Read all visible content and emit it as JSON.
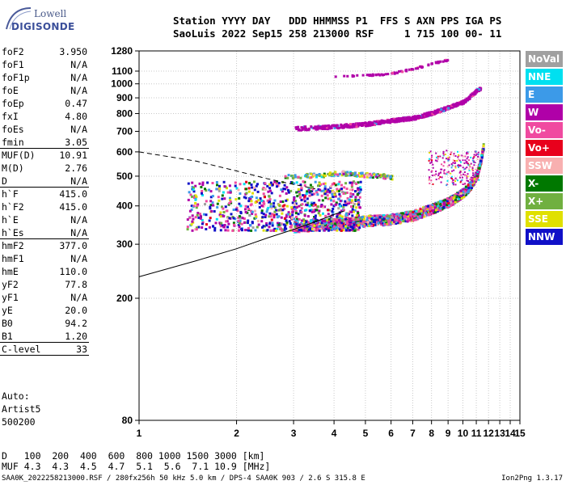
{
  "logo": {
    "line1": "Lowell",
    "line2": "DIGISONDE"
  },
  "header": {
    "line1": "Station YYYY DAY   DDD HHMMSS P1  FFS S AXN PPS IGA PS",
    "line2": "SaoLuis 2022 Sep15 258 213000 RSF     1 715 100 00- 11"
  },
  "params": [
    {
      "label": "foF2",
      "value": "3.950"
    },
    {
      "label": "foF1",
      "value": "N/A"
    },
    {
      "label": "foF1p",
      "value": "N/A"
    },
    {
      "label": "foE",
      "value": "N/A"
    },
    {
      "label": "foEp",
      "value": "0.47"
    },
    {
      "label": "fxI",
      "value": "4.80"
    },
    {
      "label": "foEs",
      "value": "N/A"
    },
    {
      "label": "fmin",
      "value": "3.05",
      "sep": true
    },
    {
      "label": "MUF(D)",
      "value": "10.91"
    },
    {
      "label": "M(D)",
      "value": "2.76"
    },
    {
      "label": "D",
      "value": "N/A",
      "sep": true
    },
    {
      "label": "h`F",
      "value": "415.0"
    },
    {
      "label": "h`F2",
      "value": "415.0"
    },
    {
      "label": "h`E",
      "value": "N/A"
    },
    {
      "label": "h`Es",
      "value": "N/A",
      "sep": true
    },
    {
      "label": "hmF2",
      "value": "377.0"
    },
    {
      "label": "hmF1",
      "value": "N/A"
    },
    {
      "label": "hmE",
      "value": "110.0"
    },
    {
      "label": "yF2",
      "value": "77.8"
    },
    {
      "label": "yF1",
      "value": "N/A"
    },
    {
      "label": "yE",
      "value": "20.0"
    },
    {
      "label": "B0",
      "value": "94.2"
    },
    {
      "label": "B1",
      "value": "1.20",
      "sep": true
    },
    {
      "label": "C-level",
      "value": "33",
      "sep": true
    }
  ],
  "auto": {
    "line1": "Auto:",
    "line2": "Artist5",
    "line3": "500200"
  },
  "legend": [
    {
      "name": "NoVal",
      "color": "#a0a0a0"
    },
    {
      "name": "NNE",
      "color": "#00e0f0"
    },
    {
      "name": "E",
      "color": "#3c9ae8"
    },
    {
      "name": "W",
      "color": "#b000a8"
    },
    {
      "name": "Vo-",
      "color": "#f04aa0"
    },
    {
      "name": "Vo+",
      "color": "#e8001c"
    },
    {
      "name": "SSW",
      "color": "#f8b0b0"
    },
    {
      "name": "X-",
      "color": "#007800"
    },
    {
      "name": "X+",
      "color": "#70b040"
    },
    {
      "name": "SSE",
      "color": "#e0e000"
    },
    {
      "name": "NNW",
      "color": "#1010c8"
    }
  ],
  "muf_table": {
    "d_label": "D",
    "d_values": "100  200  400  600  800 1000 1500 3000 [km]",
    "muf_label": "MUF",
    "muf_values": "4.3  4.3  4.5  4.7  5.1  5.6  7.1 10.9 [MHz]"
  },
  "footer": "SAA0K_2022258213000.RSF / 280fx256h 50 kHz 5.0 km / DPS-4 SAA0K 903 / 2.6 S 315.8 E",
  "version": "Ion2Png 1.3.17",
  "chart_data": {
    "type": "scatter",
    "xlim": [
      1,
      15
    ],
    "ylim": [
      80,
      1280
    ],
    "x_ticks": [
      "1",
      "2",
      "3",
      "4",
      "5",
      "6",
      "7",
      "8",
      "9",
      "10",
      "11",
      "12",
      "13",
      "14",
      "15"
    ],
    "y_ticks": [
      "80",
      "200",
      "300",
      "400",
      "500",
      "600",
      "700",
      "800",
      "900",
      "1000",
      "1100",
      "1280"
    ],
    "grid": true,
    "x_scale": "log",
    "y_scale": "log",
    "series": [
      {
        "trace": "F2 o-trace",
        "points": [
          [
            3.0,
            345
          ],
          [
            3.5,
            350
          ],
          [
            4.0,
            352
          ],
          [
            4.5,
            355
          ],
          [
            5.0,
            360
          ],
          [
            5.5,
            362
          ],
          [
            6.0,
            365
          ],
          [
            6.5,
            370
          ],
          [
            7.0,
            375
          ],
          [
            7.5,
            385
          ],
          [
            8.0,
            395
          ],
          [
            8.5,
            405
          ],
          [
            9.0,
            415
          ],
          [
            9.5,
            430
          ],
          [
            10.0,
            445
          ],
          [
            10.5,
            470
          ],
          [
            11.0,
            510
          ],
          [
            11.3,
            570
          ],
          [
            11.5,
            630
          ]
        ]
      },
      {
        "trace": "multiple hop",
        "points": [
          [
            3.0,
            720
          ],
          [
            4.0,
            730
          ],
          [
            5.0,
            745
          ],
          [
            6.0,
            765
          ],
          [
            7.0,
            780
          ],
          [
            8.0,
            810
          ],
          [
            9.0,
            845
          ],
          [
            10.0,
            880
          ],
          [
            10.5,
            920
          ],
          [
            11.0,
            960
          ],
          [
            11.3,
            975
          ]
        ]
      },
      {
        "trace": "high echoes",
        "points": [
          [
            4.0,
            1060
          ],
          [
            4.5,
            1070
          ],
          [
            5.0,
            1075
          ],
          [
            5.5,
            1080
          ],
          [
            6.0,
            1090
          ],
          [
            7.0,
            1130
          ],
          [
            7.5,
            1150
          ],
          [
            8.0,
            1175
          ],
          [
            8.5,
            1190
          ],
          [
            9.0,
            1210
          ]
        ]
      },
      {
        "trace": "Es/E layer",
        "points": [
          [
            2.8,
            500
          ],
          [
            3.2,
            505
          ],
          [
            3.8,
            510
          ],
          [
            4.2,
            515
          ],
          [
            4.8,
            510
          ],
          [
            5.5,
            505
          ],
          [
            6.0,
            500
          ]
        ]
      }
    ],
    "profile_curves": [
      {
        "name": "dashed",
        "points": [
          [
            1.0,
            600
          ],
          [
            1.5,
            560
          ],
          [
            2.0,
            520
          ],
          [
            2.5,
            490
          ],
          [
            3.0,
            470
          ],
          [
            3.5,
            455
          ]
        ]
      },
      {
        "name": "solid",
        "points": [
          [
            1.0,
            235
          ],
          [
            1.5,
            265
          ],
          [
            2.0,
            290
          ],
          [
            2.5,
            315
          ],
          [
            3.0,
            335
          ],
          [
            3.5,
            355
          ],
          [
            4.0,
            375
          ],
          [
            4.3,
            385
          ]
        ]
      }
    ]
  }
}
